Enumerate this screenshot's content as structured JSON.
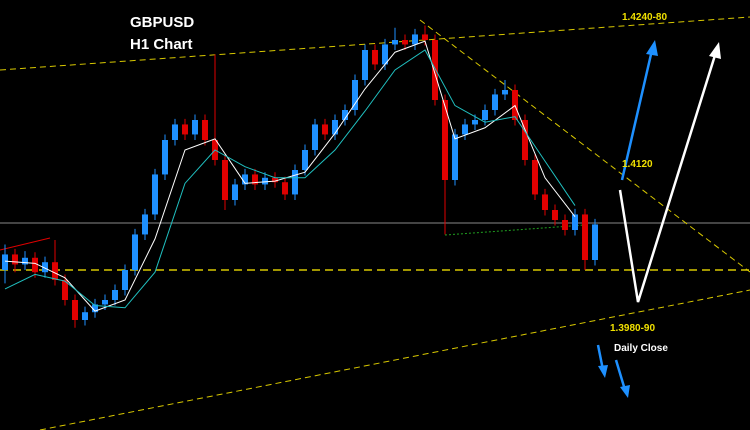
{
  "chart_data": {
    "type": "candlestick",
    "title": "GBPUSD",
    "subtitle": "H1 Chart",
    "up_color": "#1e90ff",
    "down_color": "#e00000",
    "ylim": [
      1.3888,
      1.4275
    ],
    "open": [
      1.4032,
      1.4046,
      1.4037,
      1.4043,
      1.403,
      1.4039,
      1.4023,
      1.4005,
      1.3987,
      1.3994,
      1.4001,
      1.4005,
      1.4014,
      1.4032,
      1.4064,
      1.4082,
      1.4118,
      1.4149,
      1.4163,
      1.4154,
      1.4167,
      1.4149,
      1.4131,
      1.4095,
      1.4109,
      1.4118,
      1.4109,
      1.4115,
      1.4111,
      1.41,
      1.4122,
      1.414,
      1.4163,
      1.4154,
      1.4167,
      1.4176,
      1.4203,
      1.423,
      1.4217,
      1.4235,
      1.4239,
      1.4235,
      1.4244,
      1.4239,
      1.4185,
      1.4113,
      1.4154,
      1.4163,
      1.4167,
      1.4176,
      1.419,
      1.4194,
      1.4167,
      1.4131,
      1.41,
      1.4086,
      1.4077,
      1.4068,
      1.4082,
      1.4041
    ],
    "high": [
      1.4055,
      1.4051,
      1.4049,
      1.4048,
      1.4044,
      1.4059,
      1.4028,
      1.401,
      1.3999,
      1.4006,
      1.401,
      1.4019,
      1.4037,
      1.4069,
      1.4087,
      1.4123,
      1.4154,
      1.4168,
      1.4168,
      1.4172,
      1.4172,
      1.4226,
      1.4136,
      1.4114,
      1.4123,
      1.4123,
      1.412,
      1.412,
      1.4116,
      1.4127,
      1.4145,
      1.4168,
      1.4168,
      1.4172,
      1.4181,
      1.4208,
      1.4235,
      1.4235,
      1.424,
      1.425,
      1.4244,
      1.4249,
      1.4252,
      1.4244,
      1.419,
      1.4159,
      1.4168,
      1.4172,
      1.4181,
      1.4195,
      1.4203,
      1.4199,
      1.4172,
      1.4136,
      1.4105,
      1.4091,
      1.4082,
      1.4087,
      1.4087,
      1.4078
    ],
    "low": [
      1.402,
      1.403,
      1.4032,
      1.4025,
      1.4025,
      1.4018,
      1.4,
      1.398,
      1.3982,
      1.3989,
      1.3996,
      1.4,
      1.4009,
      1.4027,
      1.4059,
      1.4077,
      1.4113,
      1.4144,
      1.4149,
      1.4149,
      1.4144,
      1.4126,
      1.4086,
      1.409,
      1.4104,
      1.4104,
      1.4104,
      1.4106,
      1.4095,
      1.4095,
      1.4117,
      1.4135,
      1.4149,
      1.4149,
      1.4162,
      1.4171,
      1.4198,
      1.4212,
      1.4212,
      1.423,
      1.423,
      1.423,
      1.4234,
      1.418,
      1.4064,
      1.4108,
      1.4149,
      1.4158,
      1.4162,
      1.4171,
      1.4185,
      1.4162,
      1.4126,
      1.4095,
      1.4081,
      1.4072,
      1.4063,
      1.4063,
      1.4032,
      1.4036
    ],
    "close": [
      1.4046,
      1.4037,
      1.4043,
      1.403,
      1.4039,
      1.4023,
      1.4005,
      1.3987,
      1.3994,
      1.4001,
      1.4005,
      1.4014,
      1.4032,
      1.4064,
      1.4082,
      1.4118,
      1.4149,
      1.4163,
      1.4154,
      1.4167,
      1.4149,
      1.4131,
      1.4095,
      1.4109,
      1.4118,
      1.4109,
      1.4115,
      1.4111,
      1.41,
      1.4122,
      1.414,
      1.4163,
      1.4154,
      1.4167,
      1.4176,
      1.4203,
      1.423,
      1.4217,
      1.4235,
      1.4239,
      1.4235,
      1.4244,
      1.4239,
      1.4185,
      1.4113,
      1.4154,
      1.4163,
      1.4167,
      1.4176,
      1.419,
      1.4194,
      1.4167,
      1.4131,
      1.41,
      1.4086,
      1.4077,
      1.4068,
      1.4082,
      1.4041,
      1.4073
    ],
    "ma_x": [
      0,
      3,
      6,
      9,
      12,
      15,
      18,
      21,
      24,
      27,
      30,
      33,
      36,
      39,
      42,
      45,
      48,
      51,
      54,
      57
    ],
    "series": [
      {
        "color": "#ffffff",
        "values": [
          1.404,
          1.4038,
          1.4025,
          1.3995,
          1.4005,
          1.406,
          1.414,
          1.415,
          1.411,
          1.4112,
          1.412,
          1.4155,
          1.4195,
          1.4228,
          1.4238,
          1.415,
          1.416,
          1.418,
          1.4115,
          1.408
        ]
      },
      {
        "color": "#20c0c0",
        "values": [
          1.4015,
          1.4028,
          1.4022,
          1.4,
          1.3998,
          1.403,
          1.411,
          1.414,
          1.4125,
          1.4115,
          1.4115,
          1.414,
          1.4175,
          1.4212,
          1.423,
          1.418,
          1.4165,
          1.417,
          1.413,
          1.409
        ]
      }
    ],
    "annotations": [
      "1.4240-80",
      "1.4120",
      "1.3980-90",
      "Daily Close"
    ]
  }
}
